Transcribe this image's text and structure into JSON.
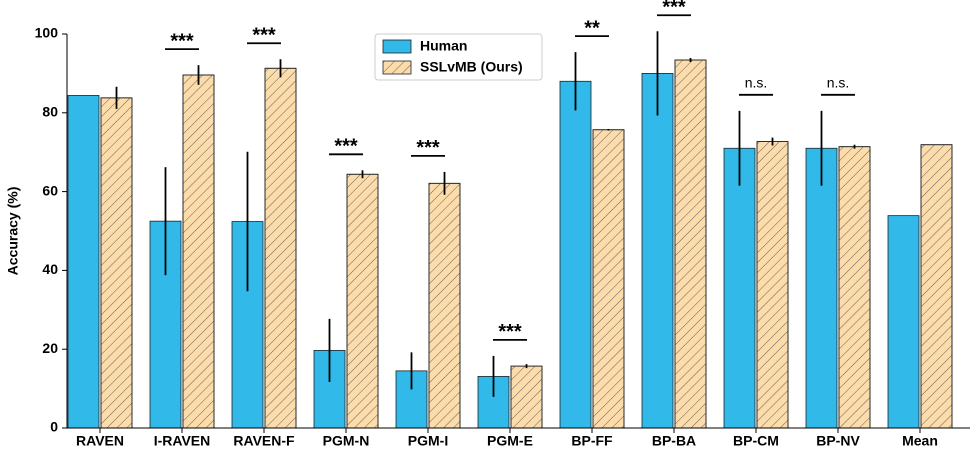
{
  "chart_data": {
    "type": "bar",
    "ylabel": "Accuracy (%)",
    "categories": [
      "RAVEN",
      "I-RAVEN",
      "RAVEN-F",
      "PGM-N",
      "PGM-I",
      "PGM-E",
      "BP-FF",
      "BP-BA",
      "BP-CM",
      "BP-NV",
      "Mean"
    ],
    "series": [
      {
        "name": "Human",
        "color": "#31b9ea",
        "values": [
          84.4,
          52.5,
          52.4,
          19.7,
          14.5,
          13.1,
          88.0,
          90.0,
          71.0,
          71.0,
          53.9
        ],
        "errors": [
          null,
          13.7,
          17.7,
          8.0,
          4.7,
          5.2,
          7.4,
          10.7,
          9.5,
          9.5,
          null
        ]
      },
      {
        "name": "SSLvMB (Ours)",
        "color": "#fbdcaa",
        "hatch": "//",
        "values": [
          83.8,
          89.6,
          91.3,
          64.4,
          62.1,
          15.7,
          75.7,
          93.4,
          72.7,
          71.4,
          71.9
        ],
        "errors": [
          2.8,
          2.5,
          2.3,
          1.0,
          2.9,
          0.5,
          0.2,
          0.5,
          1.0,
          0.5,
          null
        ]
      }
    ],
    "significance": [
      null,
      "***",
      "***",
      "***",
      "***",
      "***",
      "**",
      "***",
      "n.s.",
      "n.s.",
      null
    ],
    "ylim": [
      0,
      100
    ],
    "yticks": [
      0,
      20,
      40,
      60,
      80,
      100
    ],
    "legend": "upper center"
  }
}
